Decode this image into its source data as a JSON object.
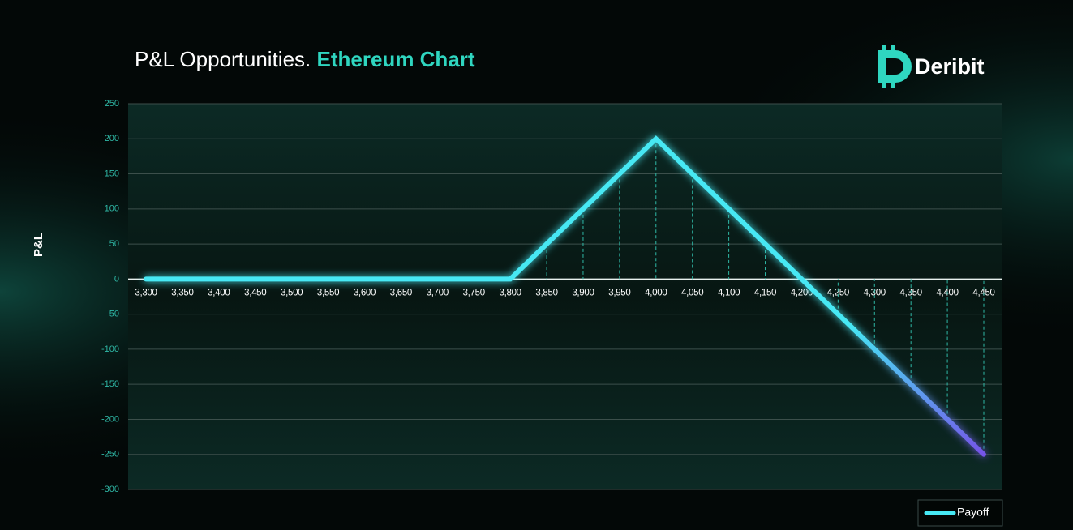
{
  "chart_data": {
    "type": "line",
    "title": "P&L Opportunities.",
    "title_accent": "Ethereum Chart",
    "brand": "Deribit",
    "y_label": "P&L",
    "categories": [
      "3,300",
      "3,350",
      "3,400",
      "3,450",
      "3,500",
      "3,550",
      "3,600",
      "3,650",
      "3,700",
      "3,750",
      "3,800",
      "3,850",
      "3,900",
      "3,950",
      "4,000",
      "4,050",
      "4,100",
      "4,150",
      "4,200",
      "4,250",
      "4,300",
      "4,350",
      "4,400",
      "4,450"
    ],
    "series": [
      {
        "name": "Payoff",
        "color": "#46e8f4",
        "values": [
          0,
          0,
          0,
          0,
          0,
          0,
          0,
          0,
          0,
          0,
          0,
          50,
          100,
          150,
          200,
          150,
          100,
          50,
          0,
          -50,
          -100,
          -150,
          -200,
          -250
        ]
      }
    ],
    "ylim": [
      -300,
      250
    ],
    "yticks": [
      -300,
      -250,
      -200,
      -150,
      -100,
      -50,
      0,
      50,
      100,
      150,
      200,
      250
    ],
    "grid": true,
    "legend": "bottom-right"
  }
}
